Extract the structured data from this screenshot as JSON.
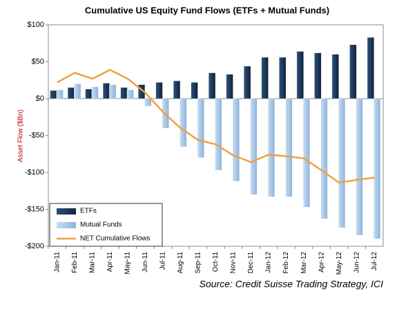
{
  "chart_data": {
    "type": "bar-line",
    "title": "Cumulative US Equity Fund Flows (ETFs + Mutual Funds)",
    "y_label": "Asset Flow ($Bn)",
    "source": "Source: Credit Suisse Trading Strategy, ICI",
    "categories": [
      "Jan-11",
      "Feb-11",
      "Mar-11",
      "Apr-11",
      "May-11",
      "Jun-11",
      "Jul-11",
      "Aug-11",
      "Sep-11",
      "Oct-11",
      "Nov-11",
      "Dec-11",
      "Jan-12",
      "Feb-12",
      "Mar-12",
      "Apr-12",
      "May-12",
      "Jun-12",
      "Jul-12"
    ],
    "series": [
      {
        "name": "ETFs",
        "kind": "bar",
        "color": "#1f3a5c",
        "values": [
          11,
          15,
          13,
          21,
          15,
          19,
          22,
          24,
          22,
          35,
          33,
          44,
          56,
          56,
          64,
          62,
          60,
          73,
          83
        ]
      },
      {
        "name": "Mutual Funds",
        "kind": "bar",
        "color": "#a9c8e6",
        "values": [
          12,
          20,
          16,
          19,
          12,
          -10,
          -40,
          -65,
          -80,
          -97,
          -112,
          -130,
          -133,
          -133,
          -147,
          -163,
          -175,
          -185,
          -190
        ]
      },
      {
        "name": "NET Cumulative Flows",
        "kind": "line",
        "color": "#f0a040",
        "values": [
          22,
          35,
          27,
          39,
          27,
          8,
          -18,
          -40,
          -56,
          -62,
          -77,
          -86,
          -76,
          -78,
          -81,
          -97,
          -114,
          -110,
          -107
        ]
      }
    ],
    "ylim": [
      -200,
      100
    ],
    "yticks": [
      {
        "value": -200,
        "label": "-$200"
      },
      {
        "value": -150,
        "label": "-$150"
      },
      {
        "value": -100,
        "label": "-$100"
      },
      {
        "value": -50,
        "label": "-$50"
      },
      {
        "value": 0,
        "label": "$0"
      },
      {
        "value": 50,
        "label": "$50"
      },
      {
        "value": 100,
        "label": "$100"
      }
    ],
    "legend": "lower left"
  }
}
